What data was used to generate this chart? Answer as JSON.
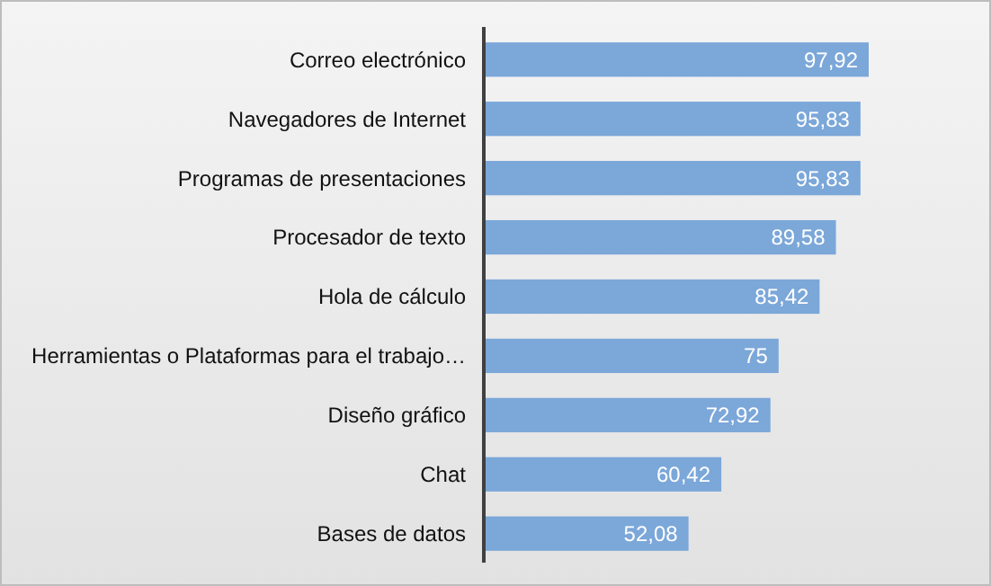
{
  "chart_data": {
    "type": "bar",
    "orientation": "horizontal",
    "categories": [
      "Correo electrónico",
      "Navegadores de Internet",
      "Programas de presentaciones",
      "Procesador de texto",
      "Hola de cálculo",
      "Herramientas o Plataformas para el trabajo…",
      "Diseño gráfico",
      "Chat",
      "Bases de datos"
    ],
    "values": [
      97.92,
      95.83,
      95.83,
      89.58,
      85.42,
      75,
      72.92,
      60.42,
      52.08
    ],
    "value_labels": [
      "97,92",
      "95,83",
      "95,83",
      "89,58",
      "85,42",
      "75",
      "72,92",
      "60,42",
      "52,08"
    ],
    "color": "#7ba7d9"
  }
}
